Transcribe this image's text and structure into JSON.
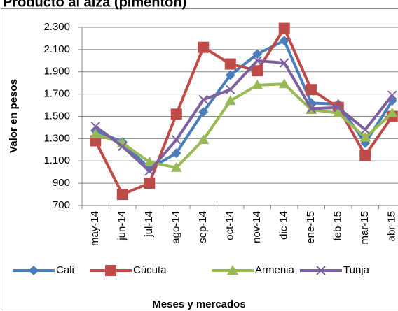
{
  "chart_data": {
    "type": "line",
    "title": "Producto al aiza (pimentón)",
    "y_label": "Valor en pesos",
    "x_label": "Meses y mercados",
    "categories": [
      "may-14",
      "jun-14",
      "jul-14",
      "ago-14",
      "sep-14",
      "oct-14",
      "nov-14",
      "dic-14",
      "ene-15",
      "feb-15",
      "mar-15",
      "abr-15"
    ],
    "series": [
      {
        "name": "Cali",
        "color": "#4a7ebb",
        "marker": "diamond",
        "values": [
          1370,
          1270,
          1030,
          1170,
          1540,
          1870,
          2060,
          2180,
          1620,
          1610,
          1260,
          1640
        ]
      },
      {
        "name": "Cúcuta",
        "color": "#be4b48",
        "marker": "square",
        "values": [
          1280,
          800,
          900,
          1520,
          2120,
          1970,
          1910,
          2290,
          1740,
          1580,
          1150,
          1500
        ]
      },
      {
        "name": "Armenia",
        "color": "#98b954",
        "marker": "triangle",
        "values": [
          1340,
          1260,
          1090,
          1040,
          1290,
          1640,
          1780,
          1790,
          1560,
          1530,
          1310,
          1530
        ]
      },
      {
        "name": "Tunja",
        "color": "#7d60a0",
        "marker": "x",
        "values": [
          1410,
          1230,
          1010,
          1290,
          1650,
          1740,
          2000,
          1980,
          1570,
          1580,
          1380,
          1690
        ]
      }
    ],
    "ylim": [
      700,
      2300
    ],
    "yticks": [
      700,
      900,
      {
        "value": 1100,
        "label": "1.100"
      },
      {
        "value": 1300,
        "label": "1.300"
      },
      {
        "value": 1500,
        "label": "1.500"
      },
      {
        "value": 1700,
        "label": "1.700"
      },
      {
        "value": 1900,
        "label": "1.900"
      },
      {
        "value": 2100,
        "label": "2.100"
      },
      {
        "value": 2300,
        "label": "2.300"
      }
    ],
    "grid": true,
    "legend": "bottom"
  }
}
